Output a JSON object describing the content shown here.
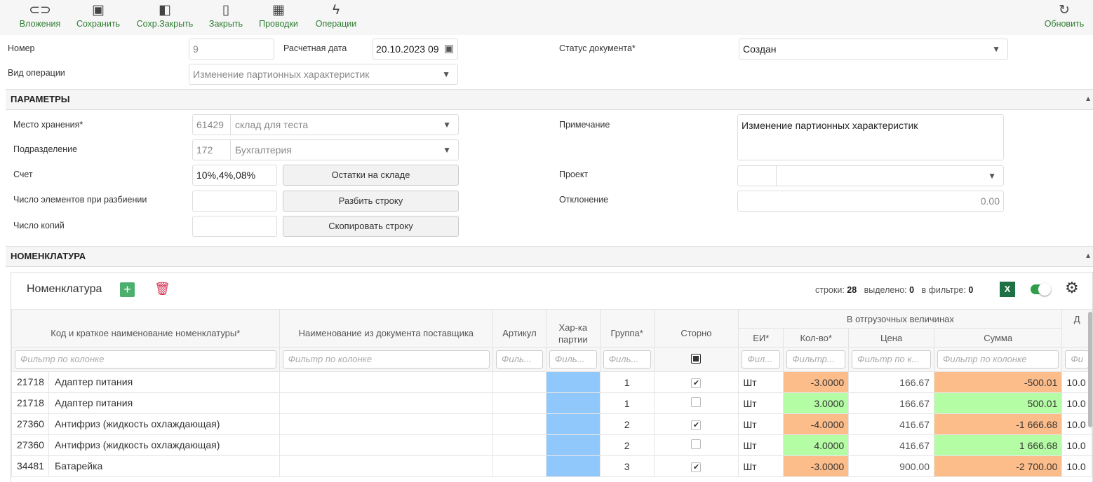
{
  "toolbar": {
    "items": [
      {
        "label": "Вложения",
        "icon": "paperclip-icon",
        "glyph": "📎"
      },
      {
        "label": "Сохранить",
        "icon": "save-icon",
        "glyph": "💾"
      },
      {
        "label": "Сохр.Закрыть",
        "icon": "save-close-icon",
        "glyph": "◧"
      },
      {
        "label": "Закрыть",
        "icon": "door-icon",
        "glyph": "▯"
      },
      {
        "label": "Проводки",
        "icon": "calculator-icon",
        "glyph": "▦"
      },
      {
        "label": "Операции",
        "icon": "lightning-icon",
        "glyph": "ϟ"
      }
    ],
    "refresh": {
      "label": "Обновить",
      "glyph": "↻"
    }
  },
  "header": {
    "number_label": "Номер",
    "number_value": "9",
    "date_label": "Расчетная дата",
    "date_value": "20.10.2023 09",
    "status_label": "Статус документа*",
    "status_value": "Создан",
    "op_label": "Вид операции",
    "op_value": "Изменение партионных характеристик"
  },
  "params": {
    "title": "ПАРАМЕТРЫ",
    "storage_label": "Место хранения*",
    "storage_code": "61429",
    "storage_name": "склад для теста",
    "division_label": "Подразделение",
    "division_code": "172",
    "division_name": "Бухгалтерия",
    "account_label": "Счет",
    "account_value": "10%,4%,08%",
    "stock_button": "Остатки на складе",
    "split_label": "Число элементов при разбиении",
    "split_button": "Разбить строку",
    "copies_label": "Число копий",
    "copy_button": "Скопировать строку",
    "note_label": "Примечание",
    "note_value": "Изменение партионных характеристик",
    "project_label": "Проект",
    "deviation_label": "Отклонение",
    "deviation_value": "0.00"
  },
  "nomen": {
    "title": "НОМЕНКЛАТУРА",
    "grid_title": "Номенклатура",
    "rows_label": "строки:",
    "rows_count": "28",
    "selected_label": "выделено:",
    "selected_count": "0",
    "filter_label": "в фильтре:",
    "filter_count": "0",
    "excel": "X",
    "group_header": "В отгрузочных величинах",
    "columns": [
      "Код и краткое наименование номенклатуры*",
      "Наименование из документа поставщика",
      "Артикул",
      "Хар-ка партии",
      "Группа*",
      "Сторно",
      "ЕИ*",
      "Кол-во*",
      "Цена",
      "Сумма",
      "Д"
    ],
    "filters": [
      "Фильтр по колонке",
      "Фильтр по колонке",
      "Филь...",
      "Филь...",
      "Филь...",
      "",
      "Фил...",
      "Фильтр...",
      "Фильтр по к...",
      "Фильтр по колонке",
      "Фи"
    ],
    "rows": [
      {
        "code": "21718",
        "name": "Адаптер питания",
        "group": "1",
        "storno": "✔",
        "unit": "Шт",
        "qty": "-3.0000",
        "price": "166.67",
        "sum": "-500.01",
        "d": "10.0",
        "neg": true
      },
      {
        "code": "21718",
        "name": "Адаптер питания",
        "group": "1",
        "storno": "",
        "unit": "Шт",
        "qty": "3.0000",
        "price": "166.67",
        "sum": "500.01",
        "d": "10.0",
        "neg": false
      },
      {
        "code": "27360",
        "name": "Антифриз (жидкость охлаждающая)",
        "group": "2",
        "storno": "✔",
        "unit": "Шт",
        "qty": "-4.0000",
        "price": "416.67",
        "sum": "-1 666.68",
        "d": "10.0",
        "neg": true
      },
      {
        "code": "27360",
        "name": "Антифриз (жидкость охлаждающая)",
        "group": "2",
        "storno": "",
        "unit": "Шт",
        "qty": "4.0000",
        "price": "416.67",
        "sum": "1 666.68",
        "d": "10.0",
        "neg": false
      },
      {
        "code": "34481",
        "name": "Батарейка",
        "group": "3",
        "storno": "✔",
        "unit": "Шт",
        "qty": "-3.0000",
        "price": "900.00",
        "sum": "-2 700.00",
        "d": "10.0",
        "neg": true
      }
    ]
  },
  "colors": {
    "toolbar_label": "#2e7d32",
    "negative": "#fdbd8b",
    "positive": "#b5fda4",
    "batch": "#90c8fb"
  }
}
